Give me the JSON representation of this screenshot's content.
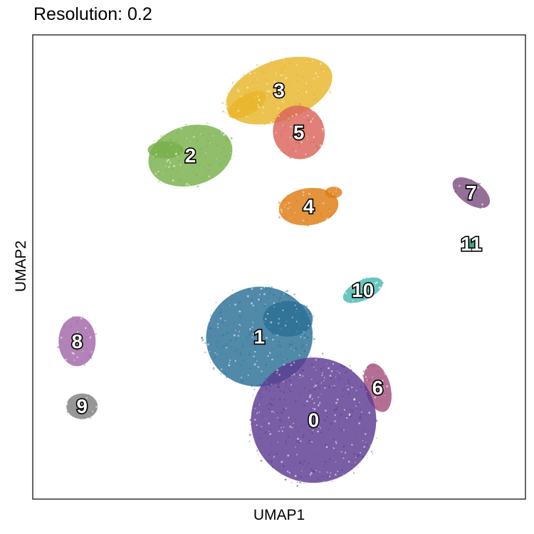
{
  "chart_data": {
    "type": "scatter",
    "title": "Resolution: 0.2",
    "xlabel": "UMAP1",
    "ylabel": "UMAP2",
    "xlim": [
      0,
      100
    ],
    "ylim": [
      0,
      100
    ],
    "grid": false,
    "legend": "none",
    "ticks": false,
    "clusters": [
      {
        "label": "0",
        "color": "#5b3b91",
        "x": 57,
        "y": 17
      },
      {
        "label": "1",
        "color": "#2b6f95",
        "x": 46,
        "y": 35
      },
      {
        "label": "2",
        "color": "#78b04b",
        "x": 32,
        "y": 74
      },
      {
        "label": "3",
        "color": "#e8b62a",
        "x": 50,
        "y": 88
      },
      {
        "label": "4",
        "color": "#de7d12",
        "x": 56,
        "y": 63
      },
      {
        "label": "5",
        "color": "#d9645a",
        "x": 54,
        "y": 79
      },
      {
        "label": "6",
        "color": "#a3507c",
        "x": 70,
        "y": 24
      },
      {
        "label": "7",
        "color": "#7c5182",
        "x": 89,
        "y": 66
      },
      {
        "label": "8",
        "color": "#a166a8",
        "x": 9,
        "y": 34
      },
      {
        "label": "9",
        "color": "#808080",
        "x": 10,
        "y": 20
      },
      {
        "label": "10",
        "color": "#48b9b0",
        "x": 67,
        "y": 45
      },
      {
        "label": "11",
        "color": "#1f8f63",
        "x": 89,
        "y": 55
      }
    ]
  }
}
